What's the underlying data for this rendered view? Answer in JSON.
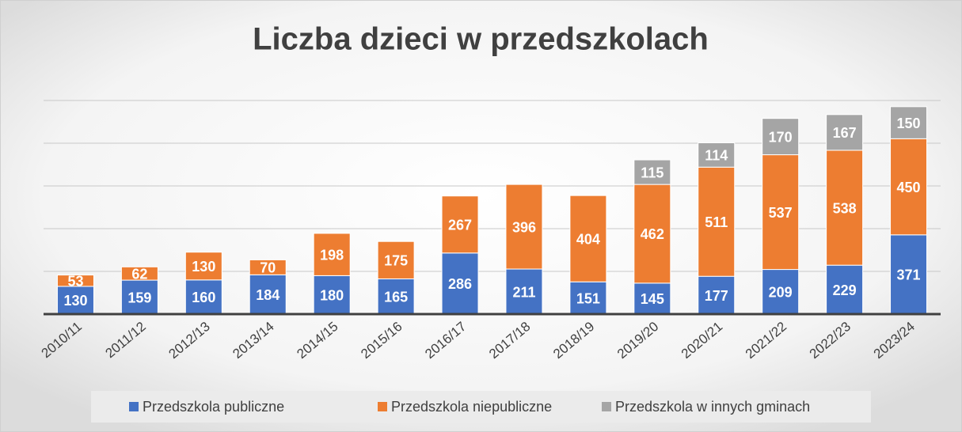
{
  "chart_data": {
    "type": "stacked_bar",
    "title": "Liczba dzieci w przedszkolach",
    "categories": [
      "2010/11",
      "2011/12",
      "2012/13",
      "2013/14",
      "2014/15",
      "2015/16",
      "2016/17",
      "2017/18",
      "2018/19",
      "2019/20",
      "2020/21",
      "2021/22",
      "2022/23",
      "2023/24"
    ],
    "series": [
      {
        "name": "Przedszkola publiczne",
        "color": "#4472c4",
        "values": [
          130,
          159,
          160,
          184,
          180,
          165,
          286,
          211,
          151,
          145,
          177,
          209,
          229,
          371
        ]
      },
      {
        "name": "Przedszkola niepubliczne",
        "color": "#ed7d31",
        "values": [
          53,
          62,
          130,
          70,
          198,
          175,
          267,
          396,
          404,
          462,
          511,
          537,
          538,
          450
        ]
      },
      {
        "name": "Przedszkola w innych gminach",
        "color": "#a5a5a5",
        "values": [
          null,
          null,
          null,
          null,
          null,
          null,
          null,
          null,
          null,
          115,
          114,
          170,
          167,
          150
        ]
      }
    ],
    "ylim": [
      0,
      1000
    ],
    "yticks": [
      0,
      200,
      400,
      600,
      800,
      1000
    ],
    "grid": true,
    "legend": "bottom"
  }
}
